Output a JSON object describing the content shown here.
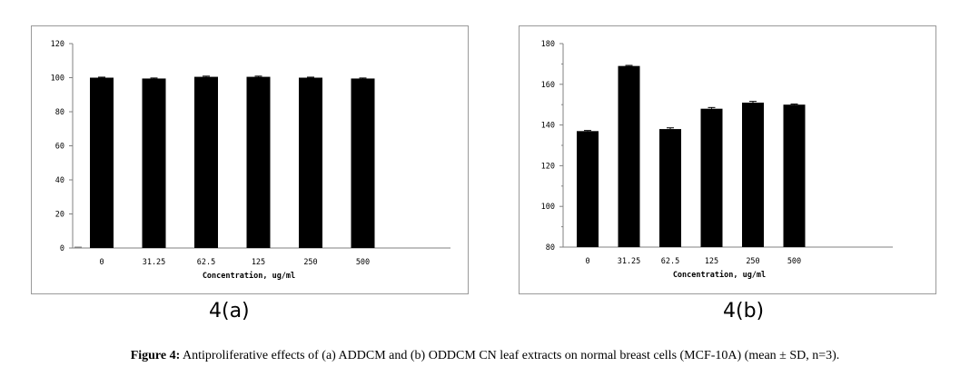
{
  "chart_data": [
    {
      "type": "bar",
      "categories": [
        "0",
        "31.25",
        "62.5",
        "125",
        "250",
        "500"
      ],
      "values": [
        100,
        99.5,
        100.5,
        100.5,
        100,
        99.5
      ],
      "error": [
        0.3,
        0.3,
        0.4,
        0.4,
        0.3,
        0.3
      ],
      "xlabel": "Concentration, ug/ml",
      "ylabel": "",
      "ylim": [
        0,
        120
      ],
      "yticks": [
        "0",
        "20",
        "40",
        "60",
        "80",
        "100",
        "120"
      ],
      "grid": false,
      "legend": "none",
      "panel_label": "4(a)",
      "bar_color": "#000000"
    },
    {
      "type": "bar",
      "categories": [
        "0",
        "31.25",
        "62.5",
        "125",
        "250",
        "500"
      ],
      "values": [
        137,
        169,
        138,
        148,
        151,
        150
      ],
      "error": [
        0.3,
        0.3,
        0.6,
        0.6,
        0.6,
        0.3
      ],
      "xlabel": "Concentration, ug/ml",
      "ylabel": "",
      "ylim": [
        80,
        180
      ],
      "yticks": [
        "80",
        "100",
        "120",
        "140",
        "160",
        "180"
      ],
      "grid": false,
      "legend": "none",
      "panel_label": "4(b)",
      "bar_color": "#000000"
    }
  ],
  "caption": {
    "prefix": "Figure 4:",
    "text": " Antiproliferative effects of (a) ADDCM and (b) ODDCM CN leaf extracts on normal breast cells (MCF-10A) (mean ± SD, n=3)."
  }
}
